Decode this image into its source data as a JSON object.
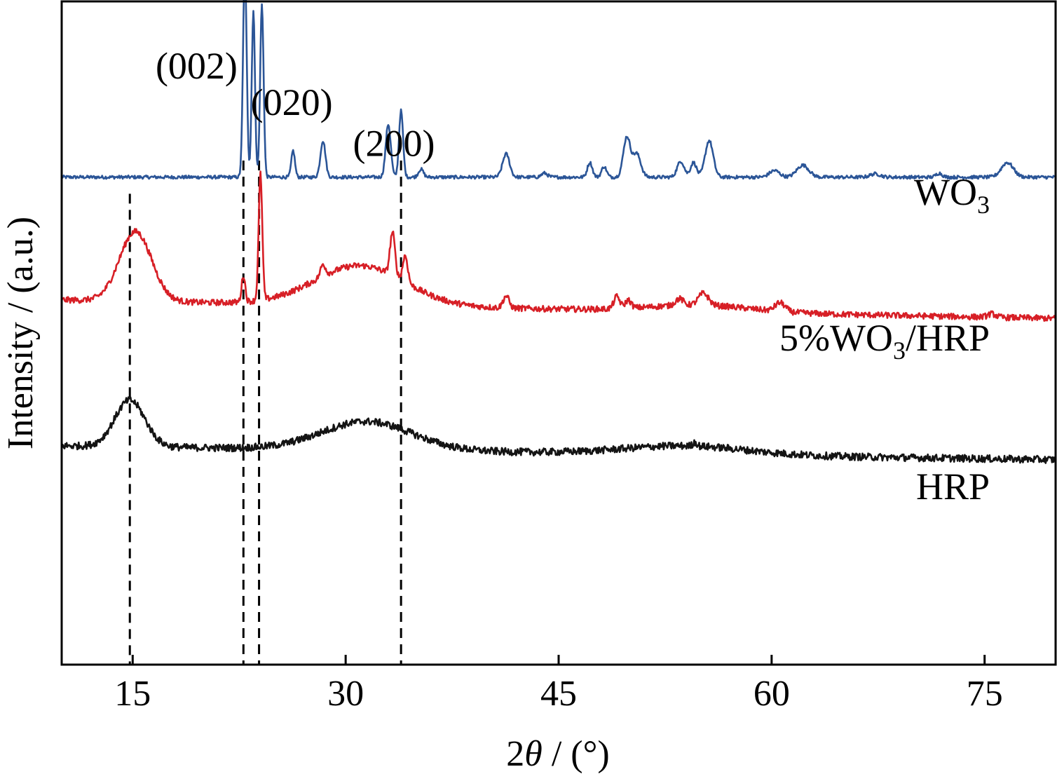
{
  "chart_data": {
    "type": "line",
    "title": "",
    "xlabel": "2θ / (°)",
    "xlabel_parts": {
      "prefix": "2",
      "symbol": "θ",
      "suffix": " / (°)"
    },
    "ylabel": "Intensity / (a.u.)",
    "xlim": [
      10,
      80
    ],
    "ylim": [
      0,
      100
    ],
    "x_ticks": [
      15,
      30,
      45,
      60,
      75
    ],
    "x_tick_labels": [
      "15",
      "30",
      "45",
      "60",
      "75"
    ],
    "grid": false,
    "legend": "none",
    "series": [
      {
        "name": "WO3",
        "label_main": "WO",
        "label_sub": "3",
        "label_tail": "",
        "color": "#2b5597",
        "baseline": 73.5,
        "noise": 0.25,
        "slope": 0,
        "bumps": [],
        "peaks": [
          {
            "x": 22.9,
            "h": 32,
            "w": 0.18
          },
          {
            "x": 23.5,
            "h": 25,
            "w": 0.16
          },
          {
            "x": 24.1,
            "h": 26,
            "w": 0.17
          },
          {
            "x": 26.3,
            "h": 4,
            "w": 0.18
          },
          {
            "x": 28.4,
            "h": 5.5,
            "w": 0.25
          },
          {
            "x": 33.0,
            "h": 8,
            "w": 0.25
          },
          {
            "x": 33.9,
            "h": 10,
            "w": 0.2
          },
          {
            "x": 35.3,
            "h": 1.2,
            "w": 0.25
          },
          {
            "x": 41.3,
            "h": 3.5,
            "w": 0.35
          },
          {
            "x": 44.0,
            "h": 0.6,
            "w": 0.3
          },
          {
            "x": 47.2,
            "h": 2.2,
            "w": 0.25
          },
          {
            "x": 48.2,
            "h": 1.6,
            "w": 0.25
          },
          {
            "x": 49.8,
            "h": 6,
            "w": 0.35
          },
          {
            "x": 50.5,
            "h": 3.5,
            "w": 0.4
          },
          {
            "x": 53.6,
            "h": 2.4,
            "w": 0.35
          },
          {
            "x": 54.5,
            "h": 2.2,
            "w": 0.3
          },
          {
            "x": 55.6,
            "h": 5.5,
            "w": 0.4
          },
          {
            "x": 60.2,
            "h": 1.0,
            "w": 0.5
          },
          {
            "x": 62.2,
            "h": 1.8,
            "w": 0.6
          },
          {
            "x": 67.3,
            "h": 0.5,
            "w": 0.5
          },
          {
            "x": 71.8,
            "h": 0.6,
            "w": 0.3
          },
          {
            "x": 76.6,
            "h": 2.2,
            "w": 0.6
          }
        ]
      },
      {
        "name": "5%WO3/HRP",
        "label_main": "5%WO",
        "label_sub": "3",
        "label_tail": "/HRP",
        "color": "#d71f26",
        "baseline": 55,
        "noise": 0.45,
        "slope": -0.04,
        "bumps": [
          {
            "x": 15.2,
            "h": 10.5,
            "w": 1.6
          },
          {
            "x": 31.0,
            "h": 6,
            "w": 4.5
          },
          {
            "x": 55.0,
            "h": 1.0,
            "w": 5
          }
        ],
        "peaks": [
          {
            "x": 22.8,
            "h": 4,
            "w": 0.18
          },
          {
            "x": 24.0,
            "h": 19,
            "w": 0.18
          },
          {
            "x": 28.4,
            "h": 1.8,
            "w": 0.25
          },
          {
            "x": 33.3,
            "h": 6.5,
            "w": 0.25
          },
          {
            "x": 34.2,
            "h": 4,
            "w": 0.25
          },
          {
            "x": 41.3,
            "h": 1.8,
            "w": 0.3
          },
          {
            "x": 49.1,
            "h": 1.8,
            "w": 0.3
          },
          {
            "x": 49.9,
            "h": 1.2,
            "w": 0.3
          },
          {
            "x": 53.5,
            "h": 1.0,
            "w": 0.4
          },
          {
            "x": 55.2,
            "h": 1.8,
            "w": 0.5
          },
          {
            "x": 60.6,
            "h": 1.3,
            "w": 0.5
          },
          {
            "x": 75.5,
            "h": 0.5,
            "w": 0.4
          }
        ]
      },
      {
        "name": "HRP",
        "label_main": "HRP",
        "label_sub": "",
        "label_tail": "",
        "color": "#141414",
        "baseline": 33,
        "noise": 0.55,
        "slope": -0.03,
        "bumps": [
          {
            "x": 14.8,
            "h": 7,
            "w": 1.5
          },
          {
            "x": 31.5,
            "h": 4.3,
            "w": 4.5
          },
          {
            "x": 54.0,
            "h": 1.3,
            "w": 6
          }
        ],
        "peaks": [
          {
            "x": 54.6,
            "h": 0.6,
            "w": 0.2
          }
        ]
      }
    ],
    "reference_lines": [
      {
        "x": 14.8,
        "y_top": 71
      },
      {
        "x": 22.8,
        "y_top": 76
      },
      {
        "x": 23.9,
        "y_top": 76
      },
      {
        "x": 33.9,
        "y_top": 76
      }
    ],
    "annotations": [
      {
        "text": "(002)",
        "x": 19.5,
        "y": 100
      },
      {
        "text": "(020)",
        "x": 26.2,
        "y": 94.5
      },
      {
        "text": "(200)",
        "x": 33.4,
        "y": 88.3
      }
    ]
  }
}
